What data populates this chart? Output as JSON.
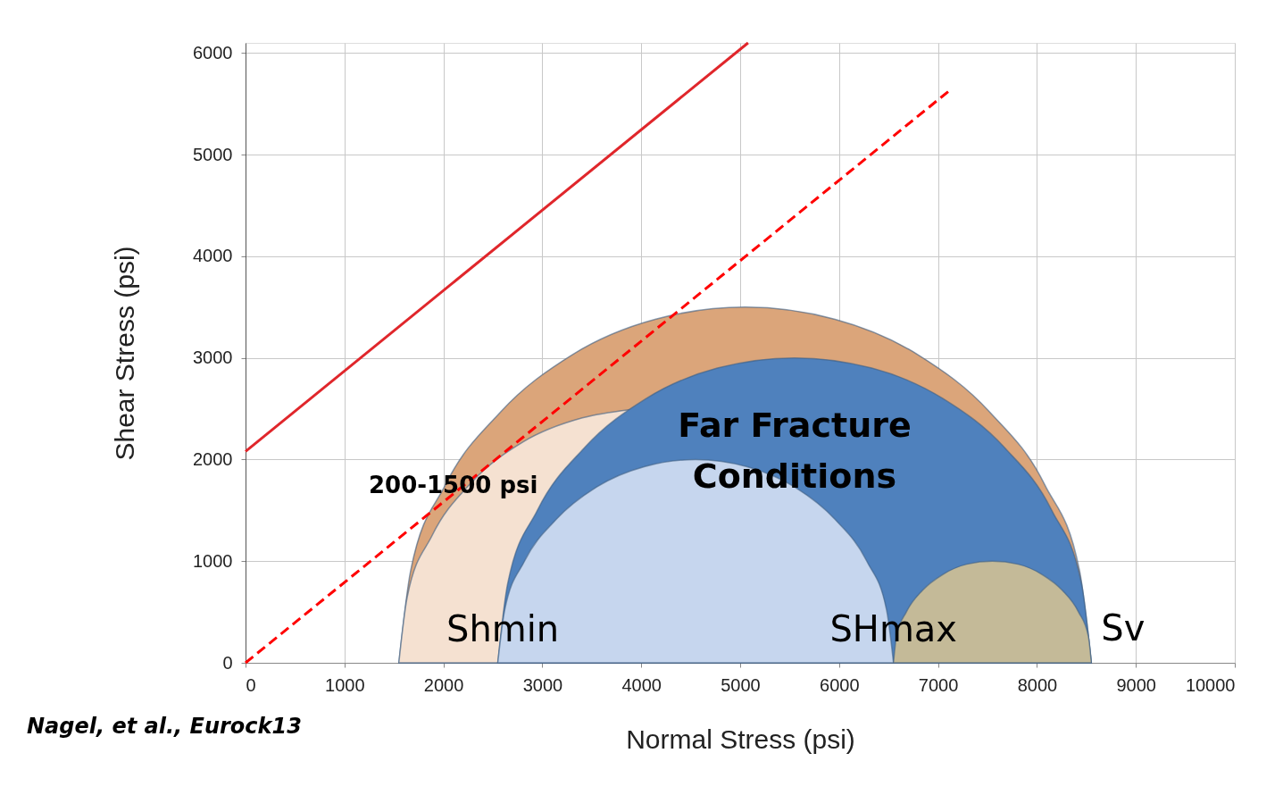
{
  "chart_data": {
    "type": "area",
    "xlabel": "Normal  Stress (psi)",
    "ylabel": "Shear Stress (psi)",
    "xlim": [
      0,
      10000
    ],
    "ylim": [
      0,
      6100
    ],
    "xticks": [
      0,
      1000,
      2000,
      3000,
      4000,
      5000,
      6000,
      7000,
      8000,
      9000,
      10000
    ],
    "yticks": [
      0,
      1000,
      2000,
      3000,
      4000,
      5000,
      6000
    ],
    "grid": true,
    "series": [
      {
        "color": "#dba57a",
        "x": [
          1550,
          1670,
          2020,
          2580,
          3300,
          4140,
          5050,
          5960,
          6800,
          7520,
          8080,
          8430,
          8550
        ],
        "values": [
          0,
          910,
          1750,
          2470,
          3030,
          3380,
          3500,
          3380,
          3030,
          2470,
          1750,
          910,
          0
        ]
      },
      {
        "color": "#f5e1d1",
        "x": [
          1550,
          1635,
          1885,
          2280,
          2800,
          3405,
          3880
        ],
        "values": [
          0,
          650,
          1250,
          1770,
          2170,
          2410,
          2490
        ]
      },
      {
        "color": "#4f81bd",
        "x": [
          2550,
          2650,
          2950,
          3430,
          4050,
          4770,
          5550,
          6330,
          7050,
          7670,
          8150,
          8450,
          8550
        ],
        "values": [
          0,
          780,
          1500,
          2120,
          2600,
          2900,
          3000,
          2900,
          2600,
          2120,
          1500,
          780,
          0
        ]
      },
      {
        "color": "#c6d6ee",
        "x": [
          2550,
          2620,
          2820,
          3140,
          3550,
          4030,
          4550,
          5070,
          5550,
          5960,
          6280,
          6480,
          6550
        ],
        "values": [
          0,
          520,
          1000,
          1410,
          1730,
          1930,
          2000,
          1930,
          1730,
          1410,
          1000,
          520,
          0
        ]
      },
      {
        "color": "#c4ba98",
        "x": [
          6550,
          6580,
          6680,
          6840,
          7050,
          7290,
          7550,
          7810,
          8050,
          8260,
          8420,
          8520,
          8550
        ],
        "values": [
          0,
          260,
          500,
          710,
          870,
          970,
          1000,
          970,
          870,
          710,
          500,
          260,
          0
        ]
      },
      {
        "type": "line",
        "color": "#e0262b",
        "line_style": "solid",
        "x": [
          0,
          5080
        ],
        "values": [
          2080,
          6100
        ]
      },
      {
        "type": "line",
        "color": "#ff0000",
        "line_style": "dashed",
        "x": [
          0,
          7140
        ],
        "values": [
          0,
          5650
        ]
      }
    ],
    "annotations": [
      {
        "text": "200-1500 psi",
        "x": 2100,
        "y": 1740
      },
      {
        "text": "Shmin",
        "x": 2600,
        "y": 320
      },
      {
        "text": "SHmax",
        "x": 6550,
        "y": 320
      },
      "Far Fracture\nConditions",
      "Sv",
      "Nagel, et al., Eurock13"
    ]
  }
}
